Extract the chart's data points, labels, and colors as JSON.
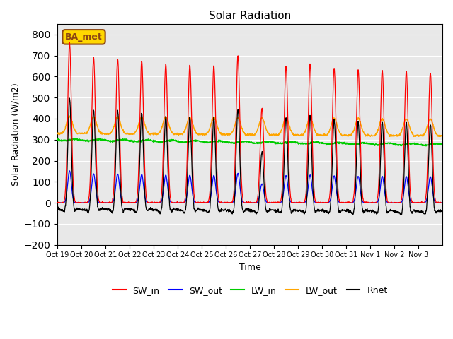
{
  "title": "Solar Radiation",
  "xlabel": "Time",
  "ylabel": "Solar Radiation (W/m2)",
  "ylim": [
    -200,
    850
  ],
  "yticks": [
    -200,
    -100,
    0,
    100,
    200,
    300,
    400,
    500,
    600,
    700,
    800
  ],
  "x_tick_labels": [
    "Oct 19",
    "Oct 20",
    "Oct 21",
    "Oct 22",
    "Oct 23",
    "Oct 24",
    "Oct 25",
    "Oct 26",
    "Oct 27",
    "Oct 28",
    "Oct 29",
    "Oct 30",
    "Oct 31",
    "Nov 1",
    "Nov 2",
    "Nov 3"
  ],
  "x_tick_positions": [
    0,
    1,
    2,
    3,
    4,
    5,
    6,
    7,
    8,
    9,
    10,
    11,
    12,
    13,
    14,
    15
  ],
  "legend_labels": [
    "SW_in",
    "SW_out",
    "LW_in",
    "LW_out",
    "Rnet"
  ],
  "legend_colors": [
    "red",
    "blue",
    "#00CC00",
    "orange",
    "black"
  ],
  "annotation_text": "BA_met",
  "annotation_color": "#8B4513",
  "annotation_bg": "#FFD700",
  "line_colors": {
    "SW_in": "red",
    "SW_out": "blue",
    "LW_in": "#00CC00",
    "LW_out": "orange",
    "Rnet": "black"
  },
  "background_color": "#E8E8E8",
  "n_days": 16,
  "points_per_day": 96,
  "sw_in_peaks": [
    760,
    690,
    685,
    675,
    660,
    655,
    650,
    700,
    450,
    650,
    660,
    640,
    630,
    630,
    625,
    620
  ],
  "lw_out_base": 330,
  "lw_in_base": 300
}
